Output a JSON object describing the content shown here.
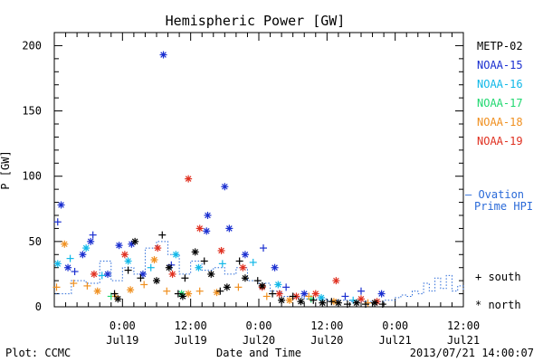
{
  "chart_data": {
    "type": "scatter",
    "title": "Hemispheric Power [GW]",
    "xlabel": "Date and Time",
    "ylabel": "P [GW]",
    "xlim_hours": [
      -18,
      18
    ],
    "ylim": [
      0,
      210
    ],
    "yticks": [
      0,
      50,
      100,
      150,
      200
    ],
    "xticks": [
      {
        "h": -12,
        "time": "0:00",
        "date": "Jul19"
      },
      {
        "h": -6,
        "time": "12:00",
        "date": "Jul19"
      },
      {
        "h": 0,
        "time": "0:00",
        "date": "Jul20"
      },
      {
        "h": 6,
        "time": "12:00",
        "date": "Jul20"
      },
      {
        "h": 12,
        "time": "0:00",
        "date": "Jul21"
      },
      {
        "h": 18,
        "time": "12:00",
        "date": "Jul21"
      }
    ],
    "legend": [
      {
        "name": "METP-02",
        "color": "#000000"
      },
      {
        "name": "NOAA-15",
        "color": "#1a2fd0"
      },
      {
        "name": "NOAA-16",
        "color": "#10b8e8"
      },
      {
        "name": "NOAA-17",
        "color": "#20d870"
      },
      {
        "name": "NOAA-18",
        "color": "#f09020"
      },
      {
        "name": "NOAA-19",
        "color": "#e03020"
      }
    ],
    "ovation_label_1": "— Ovation",
    "ovation_label_2": "Prime HPI",
    "ovation_color": "#2a6ad8",
    "marker_legend": [
      {
        "symbol": "+",
        "label": "south"
      },
      {
        "symbol": "*",
        "label": "north"
      }
    ],
    "series": [
      {
        "satellite": "NOAA-15",
        "color": "#1a2fd0",
        "points": [
          [
            -17.7,
            65,
            "+"
          ],
          [
            -17.4,
            78,
            "*"
          ],
          [
            -16.8,
            30,
            "*"
          ],
          [
            -16.2,
            27,
            "+"
          ],
          [
            -15.5,
            40,
            "*"
          ],
          [
            -14.6,
            55,
            "+"
          ],
          [
            -14.8,
            50,
            "*"
          ],
          [
            -13.3,
            25,
            "*"
          ],
          [
            -12.3,
            47,
            "*"
          ],
          [
            -11.2,
            48,
            "*"
          ],
          [
            -10.2,
            25,
            "*"
          ],
          [
            -8.4,
            193,
            "*"
          ],
          [
            -7.7,
            32,
            "+"
          ],
          [
            -4.5,
            70,
            "*"
          ],
          [
            -4.6,
            58,
            "*"
          ],
          [
            -3.0,
            92,
            "*"
          ],
          [
            -2.6,
            60,
            "*"
          ],
          [
            -1.2,
            40,
            "*"
          ],
          [
            0.4,
            45,
            "+"
          ],
          [
            1.4,
            30,
            "*"
          ],
          [
            2.4,
            15,
            "+"
          ],
          [
            4.0,
            10,
            "*"
          ],
          [
            7.6,
            8,
            "+"
          ],
          [
            9.0,
            12,
            "+"
          ],
          [
            10.8,
            10,
            "*"
          ]
        ]
      },
      {
        "satellite": "NOAA-16",
        "color": "#10b8e8",
        "points": [
          [
            -17.7,
            33,
            "*"
          ],
          [
            -16.6,
            37,
            "+"
          ],
          [
            -15.2,
            45,
            "*"
          ],
          [
            -13.8,
            24,
            "+"
          ],
          [
            -11.5,
            35,
            "*"
          ],
          [
            -9.5,
            30,
            "+"
          ],
          [
            -7.3,
            40,
            "*"
          ],
          [
            -5.3,
            30,
            "*"
          ],
          [
            -3.2,
            33,
            "+"
          ],
          [
            -0.5,
            34,
            "+"
          ],
          [
            1.7,
            17,
            "*"
          ],
          [
            5.5,
            7,
            "*"
          ],
          [
            8.3,
            5,
            "+"
          ]
        ]
      },
      {
        "satellite": "NOAA-17",
        "color": "#20d870",
        "points": [
          [
            -13.0,
            8,
            "+"
          ],
          [
            -6.8,
            10,
            "*"
          ],
          [
            4.6,
            6,
            "+"
          ]
        ]
      },
      {
        "satellite": "NOAA-18",
        "color": "#f09020",
        "points": [
          [
            -17.8,
            15,
            "+"
          ],
          [
            -17.1,
            48,
            "*"
          ],
          [
            -16.3,
            18,
            "+"
          ],
          [
            -15.1,
            16,
            "+"
          ],
          [
            -14.2,
            12,
            "*"
          ],
          [
            -12.6,
            8,
            "+"
          ],
          [
            -11.3,
            13,
            "*"
          ],
          [
            -10.1,
            17,
            "+"
          ],
          [
            -9.2,
            36,
            "*"
          ],
          [
            -8.1,
            12,
            "+"
          ],
          [
            -6.2,
            10,
            "*"
          ],
          [
            -5.2,
            12,
            "+"
          ],
          [
            -3.7,
            11,
            "*"
          ],
          [
            -1.8,
            15,
            "+"
          ],
          [
            0.7,
            8,
            "+"
          ],
          [
            2.7,
            5,
            "*"
          ],
          [
            4.4,
            8,
            "+"
          ],
          [
            6.6,
            4,
            "*"
          ],
          [
            9.6,
            3,
            "+"
          ]
        ]
      },
      {
        "satellite": "NOAA-19",
        "color": "#e03020",
        "points": [
          [
            -14.5,
            25,
            "*"
          ],
          [
            -11.8,
            40,
            "*"
          ],
          [
            -8.9,
            45,
            "*"
          ],
          [
            -7.6,
            25,
            "*"
          ],
          [
            -6.2,
            98,
            "*"
          ],
          [
            -5.2,
            60,
            "*"
          ],
          [
            -3.3,
            43,
            "*"
          ],
          [
            -1.4,
            30,
            "*"
          ],
          [
            0.3,
            15,
            "*"
          ],
          [
            1.8,
            10,
            "*"
          ],
          [
            3.3,
            8,
            "*"
          ],
          [
            5.0,
            10,
            "*"
          ],
          [
            6.8,
            20,
            "*"
          ],
          [
            9.0,
            6,
            "*"
          ],
          [
            10.4,
            4,
            "*"
          ]
        ]
      },
      {
        "satellite": "METP-02",
        "color": "#000000",
        "points": [
          [
            -12.7,
            10,
            "+"
          ],
          [
            -12.4,
            6,
            "*"
          ],
          [
            -11.5,
            28,
            "+"
          ],
          [
            -10.9,
            50,
            "*"
          ],
          [
            -10.4,
            22,
            "+"
          ],
          [
            -9.0,
            20,
            "*"
          ],
          [
            -8.5,
            55,
            "+"
          ],
          [
            -7.9,
            30,
            "*"
          ],
          [
            -7.1,
            10,
            "+"
          ],
          [
            -6.7,
            8,
            "*"
          ],
          [
            -6.5,
            22,
            "+"
          ],
          [
            -5.6,
            42,
            "*"
          ],
          [
            -4.8,
            35,
            "+"
          ],
          [
            -4.2,
            25,
            "*"
          ],
          [
            -3.4,
            12,
            "+"
          ],
          [
            -2.8,
            15,
            "*"
          ],
          [
            -1.7,
            35,
            "+"
          ],
          [
            -1.2,
            22,
            "*"
          ],
          [
            -0.1,
            20,
            "+"
          ],
          [
            0.3,
            16,
            "*"
          ],
          [
            1.2,
            10,
            "+"
          ],
          [
            2.0,
            5,
            "*"
          ],
          [
            3.0,
            8,
            "+"
          ],
          [
            3.7,
            4,
            "*"
          ],
          [
            4.8,
            5,
            "+"
          ],
          [
            5.6,
            3,
            "*"
          ],
          [
            6.4,
            4,
            "+"
          ],
          [
            7.0,
            3,
            "*"
          ],
          [
            7.8,
            2,
            "+"
          ],
          [
            8.6,
            3,
            "*"
          ],
          [
            9.4,
            2,
            "+"
          ],
          [
            10.2,
            3,
            "*"
          ],
          [
            10.9,
            2,
            "+"
          ]
        ]
      }
    ],
    "ovation_series": [
      [
        -17.9,
        10
      ],
      [
        -16.5,
        20
      ],
      [
        -15.2,
        18
      ],
      [
        -14.0,
        35
      ],
      [
        -13.0,
        20
      ],
      [
        -12.0,
        30
      ],
      [
        -11.0,
        25
      ],
      [
        -10.0,
        45
      ],
      [
        -9.0,
        50
      ],
      [
        -8.0,
        40
      ],
      [
        -7.0,
        25
      ],
      [
        -6.0,
        35
      ],
      [
        -5.0,
        28
      ],
      [
        -4.0,
        30
      ],
      [
        -3.0,
        25
      ],
      [
        -2.0,
        30
      ],
      [
        -1.0,
        20
      ],
      [
        0.0,
        18
      ],
      [
        1.0,
        12
      ],
      [
        2.0,
        8
      ],
      [
        3.0,
        7
      ],
      [
        4.0,
        6
      ],
      [
        5.0,
        6
      ],
      [
        6.0,
        5
      ],
      [
        7.0,
        5
      ],
      [
        8.0,
        4
      ],
      [
        9.0,
        4
      ],
      [
        10.0,
        4
      ],
      [
        11.0,
        5
      ],
      [
        12.0,
        7
      ],
      [
        12.5,
        9
      ],
      [
        13.0,
        8
      ],
      [
        13.5,
        12
      ],
      [
        14.0,
        10
      ],
      [
        14.5,
        18
      ],
      [
        15.0,
        12
      ],
      [
        15.5,
        22
      ],
      [
        16.0,
        14
      ],
      [
        16.5,
        24
      ],
      [
        17.0,
        12
      ],
      [
        17.5,
        16
      ],
      [
        18.0,
        12
      ]
    ]
  },
  "footer": {
    "plot_credit": "Plot: CCMC",
    "timestamp": "2013/07/21 14:00:07"
  }
}
